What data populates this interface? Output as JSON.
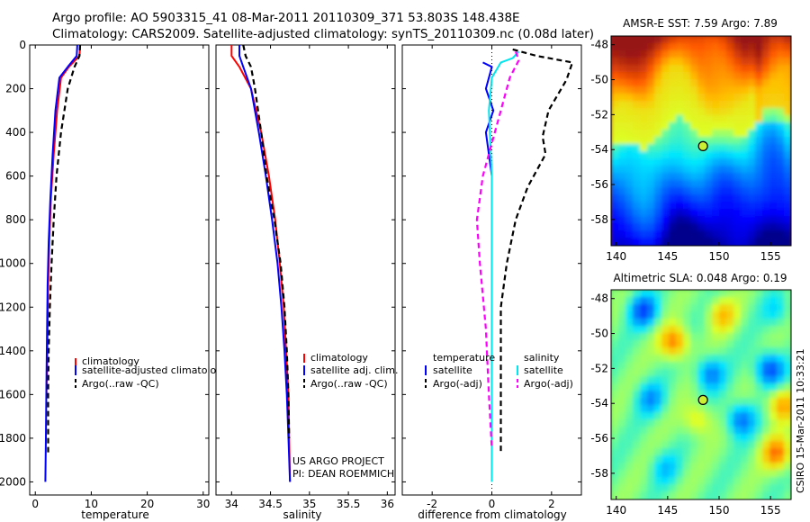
{
  "title_line1": "Argo profile: AO 5903315_41 08-Mar-2011 20110309_371 53.803S 148.438E",
  "title_line2": "Climatology: CARS2009. Satellite-adjusted climatology: synTS_20110309.nc (0.08d later)",
  "credit": "CSIRO 15-Mar-2011 10:33:21",
  "colors": {
    "climatology": "#ff0000",
    "satellite": "#0000ff",
    "argo": "#000000",
    "salinity_satellite": "#00e5ee",
    "salinity_argo": "#ff00ff"
  },
  "chart_data": [
    {
      "type": "line",
      "panel": "temperature",
      "xlabel": "temperature",
      "ylabel": "",
      "xlim": [
        -1,
        31
      ],
      "ylim": [
        2060,
        0
      ],
      "y_reversed": true,
      "xticks": [
        0,
        10,
        20,
        30
      ],
      "yticks": [
        0,
        200,
        400,
        600,
        800,
        1000,
        1200,
        1400,
        1600,
        1800,
        2000
      ],
      "legend_position": "lower-right",
      "series": [
        {
          "name": "climatology",
          "key": "clim",
          "color": "#ff0000",
          "dash": false,
          "x": [
            8.0,
            7.9,
            6.0,
            4.6,
            3.9,
            3.3,
            2.8,
            2.5,
            2.3,
            2.2,
            2.1,
            2.0,
            2.0
          ],
          "y": [
            0,
            50,
            100,
            150,
            300,
            500,
            700,
            900,
            1100,
            1300,
            1500,
            1560,
            1600
          ]
        },
        {
          "name": "satellite-adjusted climatology",
          "key": "sat",
          "color": "#0000ff",
          "dash": false,
          "x": [
            7.5,
            7.4,
            5.8,
            4.3,
            3.6,
            3.1,
            2.7,
            2.4,
            2.2,
            2.1,
            2.0,
            1.9,
            1.8
          ],
          "y": [
            0,
            50,
            100,
            150,
            300,
            500,
            700,
            900,
            1100,
            1300,
            1500,
            1800,
            2000
          ]
        },
        {
          "name": "Argo(..raw -QC)",
          "key": "argo",
          "color": "#000000",
          "dash": true,
          "x": [
            8.0,
            7.9,
            7.0,
            5.8,
            4.6,
            3.8,
            3.3,
            2.9,
            2.6,
            2.4,
            2.3,
            2.3
          ],
          "y": [
            0,
            50,
            100,
            200,
            400,
            600,
            800,
            1000,
            1200,
            1400,
            1600,
            1870
          ]
        }
      ]
    },
    {
      "type": "line",
      "panel": "salinity",
      "xlabel": "salinity",
      "ylabel": "",
      "xlim": [
        33.8,
        36.1
      ],
      "ylim": [
        2060,
        0
      ],
      "y_reversed": true,
      "xticks": [
        34,
        34.5,
        35,
        35.5,
        36
      ],
      "legend_position": "lower-right",
      "annotations": [
        "US ARGO PROJECT",
        "PI: DEAN ROEMMICH"
      ],
      "series": [
        {
          "name": "climatology",
          "key": "clim",
          "color": "#ff0000",
          "dash": false,
          "x": [
            34.0,
            34.0,
            34.1,
            34.25,
            34.38,
            34.48,
            34.56,
            34.62,
            34.67,
            34.7,
            34.73,
            34.74,
            34.75
          ],
          "y": [
            0,
            50,
            100,
            200,
            400,
            600,
            800,
            1000,
            1200,
            1400,
            1600,
            1800,
            2000
          ]
        },
        {
          "name": "satellite adj. clim.",
          "key": "sat",
          "color": "#0000ff",
          "dash": false,
          "x": [
            34.1,
            34.1,
            34.15,
            34.25,
            34.35,
            34.44,
            34.52,
            34.59,
            34.64,
            34.68,
            34.71,
            34.73,
            34.75
          ],
          "y": [
            0,
            50,
            100,
            200,
            400,
            600,
            800,
            1000,
            1200,
            1400,
            1600,
            1800,
            2000
          ]
        },
        {
          "name": "Argo(..raw -QC)",
          "key": "argo",
          "color": "#000000",
          "dash": true,
          "x": [
            34.15,
            34.18,
            34.25,
            34.3,
            34.38,
            34.45,
            34.55,
            34.63,
            34.68,
            34.71,
            34.73,
            34.74
          ],
          "y": [
            0,
            50,
            100,
            200,
            400,
            600,
            800,
            1000,
            1200,
            1400,
            1600,
            1800
          ]
        }
      ]
    },
    {
      "type": "line",
      "panel": "difference",
      "xlabel": "difference from climatology",
      "ylabel": "",
      "xlim": [
        -3.0,
        3.0
      ],
      "ylim": [
        2060,
        0
      ],
      "y_reversed": true,
      "xticks": [
        -2,
        0,
        2
      ],
      "reference_line": {
        "x": 0,
        "style": "dotted"
      },
      "legend_columns": [
        "temperature",
        "salinity"
      ],
      "series": [
        {
          "name": "satellite",
          "group": "temperature",
          "color": "#0000ff",
          "dash": false,
          "x": [
            -0.3,
            0.0,
            -0.2,
            0.05,
            -0.2,
            0.0,
            0.0,
            0.0
          ],
          "y": [
            80,
            100,
            200,
            300,
            400,
            600,
            1000,
            1400
          ]
        },
        {
          "name": "Argo(-adj)",
          "group": "temperature",
          "color": "#000000",
          "dash": true,
          "x": [
            0.7,
            1.5,
            2.7,
            2.5,
            1.9,
            1.7,
            1.8,
            1.2,
            0.8,
            0.5,
            0.3,
            0.3,
            0.3,
            0.3
          ],
          "y": [
            20,
            50,
            80,
            160,
            300,
            420,
            500,
            650,
            800,
            1000,
            1200,
            1400,
            1600,
            1870
          ]
        },
        {
          "name": "satellite",
          "group": "salinity",
          "color": "#00e5ee",
          "dash": false,
          "x": [
            0.9,
            0.7,
            0.3,
            0.0,
            -0.1,
            0.0,
            0.0,
            0.0
          ],
          "y": [
            30,
            60,
            80,
            150,
            300,
            600,
            1200,
            2000
          ]
        },
        {
          "name": "Argo(-adj)",
          "group": "salinity",
          "color": "#ff00ff",
          "dash": true,
          "x": [
            0.8,
            0.9,
            0.6,
            0.3,
            0.0,
            -0.3,
            -0.5,
            -0.4,
            -0.2,
            -0.1,
            0.0
          ],
          "y": [
            30,
            70,
            150,
            300,
            450,
            600,
            800,
            1000,
            1300,
            1600,
            1850
          ]
        }
      ]
    },
    {
      "type": "heatmap",
      "panel": "sst_map",
      "title": "AMSR-E SST: 7.59 Argo: 7.89",
      "xlim": [
        139.5,
        157
      ],
      "ylim": [
        -59.5,
        -47.5
      ],
      "xticks": [
        140,
        145,
        150,
        155
      ],
      "yticks": [
        -48,
        -50,
        -52,
        -54,
        -56,
        -58
      ],
      "marker": {
        "lon": 148.438,
        "lat": -53.803
      }
    },
    {
      "type": "heatmap",
      "panel": "sla_map",
      "title": "Altimetric SLA: 0.048 Argo: 0.19",
      "xlim": [
        139.5,
        157
      ],
      "ylim": [
        -59.5,
        -47.5
      ],
      "xticks": [
        140,
        145,
        150,
        155
      ],
      "yticks": [
        -48,
        -50,
        -52,
        -54,
        -56,
        -58
      ],
      "marker": {
        "lon": 148.438,
        "lat": -53.803
      }
    }
  ],
  "legends": {
    "temperature": [
      "climatology",
      "satellite-adjusted climatology",
      "Argo(..raw -QC)"
    ],
    "salinity": [
      "climatology",
      "satellite adj. clim.",
      "Argo(..raw -QC)"
    ],
    "difference": {
      "temperature_header": "temperature",
      "salinity_header": "salinity",
      "temperature_items": [
        "satellite",
        "Argo(-adj)"
      ],
      "salinity_items": [
        "satellite",
        "Argo(-adj)"
      ]
    }
  }
}
